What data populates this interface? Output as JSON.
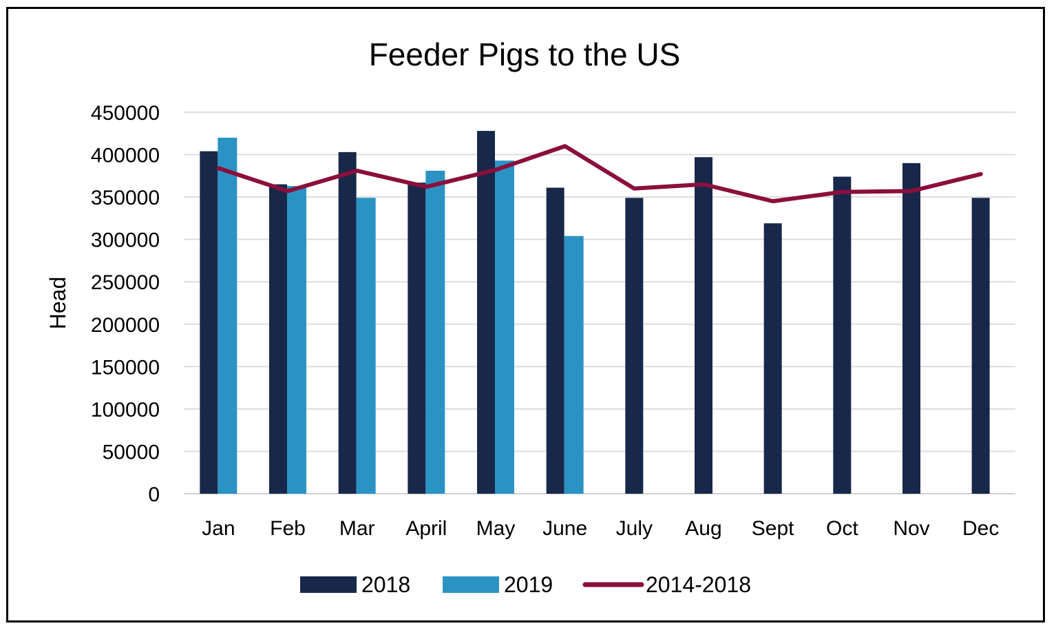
{
  "chart_data": {
    "type": "bar",
    "title": "Feeder Pigs to the US",
    "ylabel": "Head",
    "xlabel": "",
    "ylim": [
      0,
      450000
    ],
    "yticks": [
      "0",
      "50000",
      "100000",
      "150000",
      "200000",
      "250000",
      "300000",
      "350000",
      "400000",
      "450000"
    ],
    "grid": true,
    "legend_position": "bottom",
    "categories": [
      "Jan",
      "Feb",
      "Mar",
      "April",
      "May",
      "June",
      "July",
      "Aug",
      "Sept",
      "Oct",
      "Nov",
      "Dec"
    ],
    "series": [
      {
        "name": "2018",
        "type": "bar",
        "color": "#17284a",
        "values": [
          404000,
          365000,
          403000,
          367000,
          428000,
          361000,
          349000,
          397000,
          319000,
          374000,
          390000,
          349000
        ]
      },
      {
        "name": "2019",
        "type": "bar",
        "color": "#2b93c4",
        "values": [
          420000,
          363000,
          349000,
          381000,
          393000,
          304000,
          null,
          null,
          null,
          null,
          null,
          null
        ]
      },
      {
        "name": "2014-2018",
        "type": "line",
        "color": "#8b0f3c",
        "values": [
          384000,
          357000,
          381000,
          362000,
          382000,
          410000,
          360000,
          365000,
          345000,
          356000,
          357000,
          377000
        ]
      }
    ]
  }
}
